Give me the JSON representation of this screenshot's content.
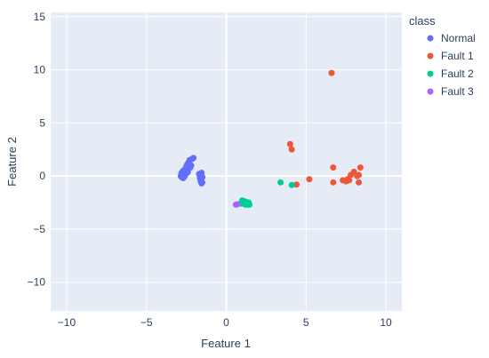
{
  "chart_data": {
    "type": "scatter",
    "xlabel": "Feature 1",
    "ylabel": "Feature 2",
    "xlim": [
      -11.0,
      11.0
    ],
    "ylim": [
      -12.7,
      15.4
    ],
    "xticks": [
      -10,
      -5,
      0,
      5,
      10
    ],
    "yticks": [
      -10,
      -5,
      0,
      5,
      10,
      15
    ],
    "grid": true,
    "legend": {
      "title": "class",
      "placement": "right"
    },
    "plot_bg": "#e5ecf6",
    "series": [
      {
        "name": "Normal",
        "color": "#636efa",
        "points": [
          [
            -2.8,
            0.3
          ],
          [
            -2.75,
            0.1
          ],
          [
            -2.7,
            0.5
          ],
          [
            -2.6,
            0.0
          ],
          [
            -2.55,
            0.7
          ],
          [
            -2.5,
            0.9
          ],
          [
            -2.45,
            1.1
          ],
          [
            -2.4,
            0.4
          ],
          [
            -2.35,
            1.3
          ],
          [
            -2.3,
            1.5
          ],
          [
            -2.25,
            0.8
          ],
          [
            -2.2,
            1.0
          ],
          [
            -2.15,
            1.6
          ],
          [
            -2.05,
            1.7
          ],
          [
            -2.7,
            -0.2
          ],
          [
            -2.6,
            0.2
          ],
          [
            -2.5,
            0.6
          ],
          [
            -2.45,
            0.3
          ],
          [
            -2.85,
            0.0
          ],
          [
            -2.8,
            -0.1
          ],
          [
            -1.7,
            0.2
          ],
          [
            -1.65,
            0.0
          ],
          [
            -1.6,
            -0.3
          ],
          [
            -1.6,
            -0.5
          ],
          [
            -1.55,
            -0.7
          ],
          [
            -1.55,
            0.3
          ],
          [
            -1.5,
            -0.1
          ],
          [
            -1.5,
            -0.6
          ],
          [
            -1.65,
            -0.2
          ]
        ]
      },
      {
        "name": "Fault 1",
        "color": "#ef553b",
        "points": [
          [
            6.6,
            9.7
          ],
          [
            4.0,
            3.0
          ],
          [
            4.1,
            2.5
          ],
          [
            6.7,
            0.8
          ],
          [
            8.4,
            0.8
          ],
          [
            5.2,
            -0.3
          ],
          [
            4.4,
            -0.8
          ],
          [
            6.7,
            -0.6
          ],
          [
            7.3,
            -0.4
          ],
          [
            7.5,
            -0.5
          ],
          [
            7.7,
            -0.4
          ],
          [
            7.8,
            0.1
          ],
          [
            8.0,
            0.4
          ],
          [
            8.2,
            0.0
          ],
          [
            8.3,
            0.1
          ],
          [
            8.3,
            -0.6
          ],
          [
            7.6,
            -0.3
          ]
        ]
      },
      {
        "name": "Fault 2",
        "color": "#00cc96",
        "points": [
          [
            1.0,
            -2.3
          ],
          [
            1.1,
            -2.6
          ],
          [
            1.2,
            -2.4
          ],
          [
            1.3,
            -2.7
          ],
          [
            1.4,
            -2.5
          ],
          [
            1.45,
            -2.7
          ],
          [
            1.2,
            -2.7
          ],
          [
            3.4,
            -0.6
          ],
          [
            4.1,
            -0.85
          ],
          [
            0.9,
            -2.6
          ]
        ]
      },
      {
        "name": "Fault 3",
        "color": "#ab63fa",
        "points": [
          [
            0.6,
            -2.7
          ],
          [
            0.7,
            -2.65
          ]
        ]
      }
    ]
  }
}
